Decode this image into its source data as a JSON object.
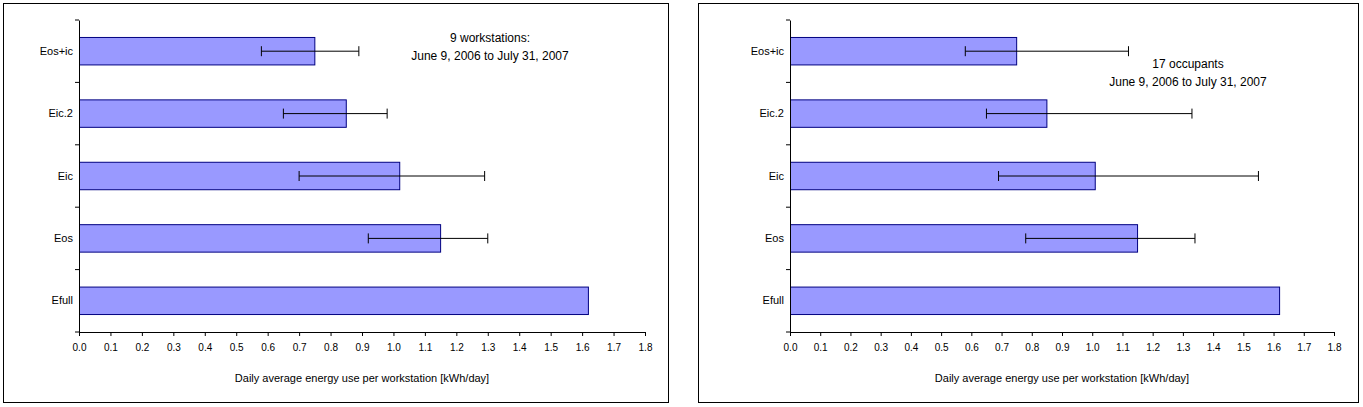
{
  "chart_data": [
    {
      "type": "bar",
      "orientation": "horizontal",
      "annotation": [
        "9 workstations:",
        "June 9, 2006 to July 31, 2007"
      ],
      "xlabel": "Daily average energy use per workstation [kWh/day]",
      "categories": [
        "Eos+ic",
        "Eic.2",
        "Eic",
        "Eos",
        "Efull"
      ],
      "values": [
        0.75,
        0.85,
        1.02,
        1.15,
        1.62
      ],
      "error_low": [
        0.58,
        0.65,
        0.7,
        0.92,
        null
      ],
      "error_high": [
        0.89,
        0.98,
        1.29,
        1.3,
        null
      ],
      "color": "#9999ff",
      "xlim": [
        0,
        1.8
      ],
      "xticks": [
        {
          "value": 0,
          "label": "0.0"
        },
        0.1,
        0.2,
        0.3,
        0.4,
        0.5,
        0.6,
        0.7,
        0.8,
        0.9,
        {
          "value": 1,
          "label": "1.0"
        },
        1.1,
        1.2,
        1.3,
        1.4,
        1.5,
        1.6,
        1.7,
        1.8
      ]
    },
    {
      "type": "bar",
      "orientation": "horizontal",
      "annotation": [
        "17 occupants",
        "June 9, 2006 to July 31, 2007"
      ],
      "xlabel": "Daily average energy use per workstation [kWh/day]",
      "categories": [
        "Eos+ic",
        "Eic.2",
        "Eic",
        "Eos",
        "Efull"
      ],
      "values": [
        0.75,
        0.85,
        1.01,
        1.15,
        1.62
      ],
      "error_low": [
        0.58,
        0.65,
        0.69,
        0.78,
        null
      ],
      "error_high": [
        1.12,
        1.33,
        1.55,
        1.34,
        null
      ],
      "color": "#9999ff",
      "xlim": [
        0,
        1.8
      ],
      "xticks": [
        {
          "value": 0,
          "label": "0.0"
        },
        0.1,
        0.2,
        0.3,
        0.4,
        0.5,
        0.6,
        0.7,
        0.8,
        0.9,
        {
          "value": 1,
          "label": "1.0"
        },
        1.1,
        1.2,
        1.3,
        1.4,
        1.5,
        1.6,
        1.7,
        1.8
      ]
    }
  ]
}
